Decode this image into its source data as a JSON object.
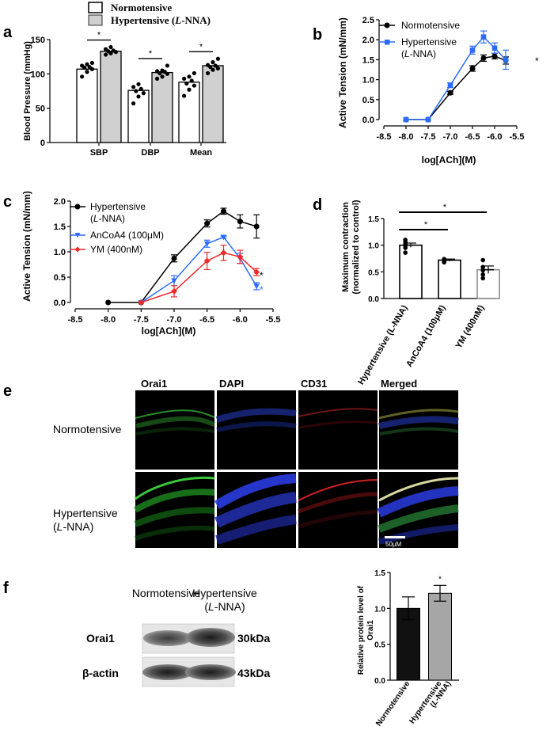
{
  "panels": {
    "a": {
      "letter": "a"
    },
    "b": {
      "letter": "b"
    },
    "c": {
      "letter": "c"
    },
    "d": {
      "letter": "d"
    },
    "e": {
      "letter": "e"
    },
    "f": {
      "letter": "f"
    }
  },
  "colors": {
    "normotensive": "#000000",
    "hypertensive_b": "#2b6cff",
    "hypertensive_c": "#000000",
    "ancoa4": "#2b6cff",
    "ym": "#ee2a2a",
    "gray_bar": "#d0d0d0",
    "dark_bar": "#111111"
  },
  "chart_data": [
    {
      "id": "a",
      "type": "bar",
      "legend": [
        "Normotensive",
        "Hypertensive (L-NNA)"
      ],
      "categories": [
        "SBP",
        "DBP",
        "Mean"
      ],
      "series": [
        {
          "name": "Normotensive",
          "values": [
            107,
            76,
            88
          ],
          "points": [
            [
              96,
              103,
              107,
              109,
              110,
              112,
              114,
              116
            ],
            [
              57,
              67,
              72,
              75,
              78,
              81,
              85
            ],
            [
              68,
              77,
              83,
              86,
              90,
              93,
              96,
              101
            ]
          ]
        },
        {
          "name": "Hypertensive (L-NNA)",
          "values": [
            133,
            102,
            112
          ],
          "points": [
            [
              128,
              130,
              132,
              133,
              134,
              136,
              139
            ],
            [
              93,
              96,
              100,
              101,
              103,
              104,
              105,
              112
            ],
            [
              101,
              106,
              108,
              110,
              112,
              113,
              117,
              122
            ]
          ]
        }
      ],
      "ylabel": "Blood Pressure (mmHg)",
      "ylim": [
        0,
        150
      ],
      "yticks": [
        "0",
        "50",
        "100",
        "150"
      ],
      "significance": [
        "*",
        "*",
        "*"
      ]
    },
    {
      "id": "b",
      "type": "line",
      "xlabel": "log[ACh](M)",
      "ylabel": "Active Tension (mN/mm)",
      "xlim": [
        -8.5,
        -5.5
      ],
      "ylim": [
        0,
        2.5
      ],
      "xticks": [
        "-8.5",
        "-8.0",
        "-7.5",
        "-7.0",
        "-6.5",
        "-6.0",
        "-5.5"
      ],
      "yticks": [
        "0.0",
        "0.5",
        "1.0",
        "1.5",
        "2.0",
        "2.5"
      ],
      "legend": [
        "Normotensive",
        "Hypertensive",
        "(L-NNA)"
      ],
      "series": [
        {
          "name": "Normotensive",
          "x": [
            -8.0,
            -7.5,
            -7.0,
            -6.5,
            -6.25,
            -6.0,
            -5.75
          ],
          "y": [
            0.0,
            0.0,
            0.67,
            1.28,
            1.54,
            1.59,
            1.48
          ],
          "err": [
            0,
            0,
            0.04,
            0.07,
            0.08,
            0.07,
            0.09
          ]
        },
        {
          "name": "Hypertensive (L-NNA)",
          "x": [
            -8.0,
            -7.5,
            -7.0,
            -6.5,
            -6.25,
            -6.0,
            -5.75
          ],
          "y": [
            0.0,
            0.0,
            0.86,
            1.74,
            2.07,
            1.79,
            1.5
          ],
          "err": [
            0,
            0,
            0.06,
            0.1,
            0.15,
            0.13,
            0.24
          ]
        }
      ],
      "annotation": "*"
    },
    {
      "id": "c",
      "type": "line",
      "xlabel": "log[ACh](M)",
      "ylabel": "Active Tension (mN/mm)",
      "xlim": [
        -8.5,
        -5.5
      ],
      "ylim": [
        0,
        2.0
      ],
      "xticks": [
        "-8.5",
        "-8.0",
        "-7.5",
        "-7.0",
        "-6.5",
        "-6.0",
        "-5.5"
      ],
      "yticks": [
        "0.0",
        "0.5",
        "1.0",
        "1.5",
        "2.0"
      ],
      "legend": [
        "Hypertensive",
        "(L-NNA)",
        "AnCoA4 (100μM)",
        "YM (400nM)"
      ],
      "series": [
        {
          "name": "Hypertensive (L-NNA)",
          "x": [
            -8.0,
            -7.5,
            -7.0,
            -6.5,
            -6.25,
            -6.0,
            -5.75
          ],
          "y": [
            0.0,
            0.0,
            0.87,
            1.56,
            1.8,
            1.6,
            1.5
          ],
          "err": [
            0,
            0,
            0.07,
            0.07,
            0.06,
            0.13,
            0.23
          ]
        },
        {
          "name": "AnCoA4 (100μM)",
          "x": [
            -7.5,
            -7.0,
            -6.5,
            -6.25,
            -6.0,
            -5.75
          ],
          "y": [
            0.0,
            0.43,
            1.16,
            1.29,
            0.87,
            0.32
          ],
          "err": [
            0,
            0.1,
            0.07,
            0.02,
            0.1,
            0.07
          ]
        },
        {
          "name": "YM (400nM)",
          "x": [
            -7.5,
            -7.0,
            -6.5,
            -6.25,
            -6.0,
            -5.75
          ],
          "y": [
            0.0,
            0.22,
            0.82,
            0.98,
            0.9,
            0.6
          ],
          "err": [
            0,
            0.11,
            0.17,
            0.15,
            0.13,
            0.07
          ]
        }
      ],
      "annotations": [
        "*",
        "*"
      ]
    },
    {
      "id": "d",
      "type": "bar",
      "categories": [
        "Hypertensive (L-NNA)",
        "AnCoA4 (100μM)",
        "YM (400nM)"
      ],
      "values": [
        1.0,
        0.72,
        0.54
      ],
      "err": [
        0.04,
        0.02,
        0.07
      ],
      "points": [
        [
          0.86,
          0.95,
          0.99,
          1.02,
          1.06,
          1.1
        ],
        [
          0.68,
          0.7,
          0.71,
          0.72,
          0.73,
          0.74
        ],
        [
          0.38,
          0.45,
          0.53,
          0.59,
          0.72
        ]
      ],
      "ylabel": "Maximum contraction (normalized to control)",
      "ylim": [
        0,
        1.5
      ],
      "yticks": [
        "0.0",
        "0.5",
        "1.0",
        "1.5"
      ],
      "significance": [
        "*",
        "*"
      ]
    },
    {
      "id": "f",
      "type": "bar",
      "categories": [
        "Normotensive",
        "Hypertensive (L-NNA)"
      ],
      "values": [
        1.0,
        1.21
      ],
      "err": [
        0.16,
        0.11
      ],
      "ylabel": "Relative protein level of Orai1",
      "ylim": [
        0,
        1.5
      ],
      "yticks": [
        "0.0",
        "0.5",
        "1.0",
        "1.5"
      ],
      "significance": "*"
    }
  ],
  "micrographs": {
    "columns": [
      "Orai1",
      "DAPI",
      "CD31",
      "Merged"
    ],
    "rows": [
      "Normotensive",
      "Hypertensive",
      "(L-NNA)"
    ],
    "scale_bar": "50μM"
  },
  "western": {
    "headers": [
      "Normotensive",
      "Hypertensive",
      "(L-NNA)"
    ],
    "bands": [
      {
        "protein": "Orai1",
        "size": "30kDa"
      },
      {
        "protein": "β-actin",
        "size": "43kDa"
      }
    ]
  }
}
